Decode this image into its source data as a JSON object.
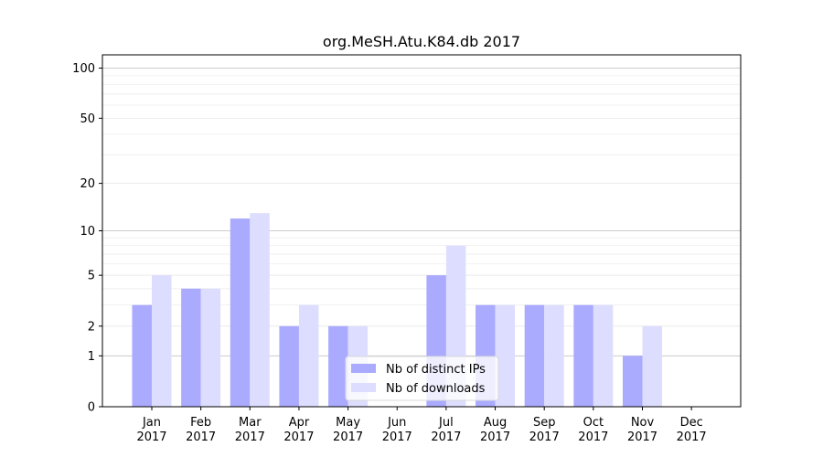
{
  "chart_data": {
    "type": "bar",
    "title": "org.MeSH.Atu.K84.db 2017",
    "xlabel": "",
    "ylabel": "",
    "categories": [
      {
        "month": "Jan",
        "year": "2017"
      },
      {
        "month": "Feb",
        "year": "2017"
      },
      {
        "month": "Mar",
        "year": "2017"
      },
      {
        "month": "Apr",
        "year": "2017"
      },
      {
        "month": "May",
        "year": "2017"
      },
      {
        "month": "Jun",
        "year": "2017"
      },
      {
        "month": "Jul",
        "year": "2017"
      },
      {
        "month": "Aug",
        "year": "2017"
      },
      {
        "month": "Sep",
        "year": "2017"
      },
      {
        "month": "Oct",
        "year": "2017"
      },
      {
        "month": "Nov",
        "year": "2017"
      },
      {
        "month": "Dec",
        "year": "2017"
      }
    ],
    "series": [
      {
        "name": "Nb of distinct IPs",
        "color": "#aaaaff",
        "values": [
          3,
          4,
          12,
          2,
          2,
          0,
          5,
          3,
          3,
          3,
          1,
          0
        ]
      },
      {
        "name": "Nb of downloads",
        "color": "#ddddff",
        "values": [
          5,
          4,
          13,
          3,
          2,
          0,
          8,
          3,
          3,
          3,
          2,
          0
        ]
      }
    ],
    "yscale": "log1p",
    "ylim": [
      0,
      120
    ],
    "yticks": [
      0,
      1,
      2,
      5,
      10,
      20,
      50,
      100
    ],
    "ytick_labels": [
      "0",
      "1",
      "2",
      "5",
      "10",
      "20",
      "50",
      "100"
    ],
    "grid": true,
    "legend_position": "bottom-center"
  }
}
